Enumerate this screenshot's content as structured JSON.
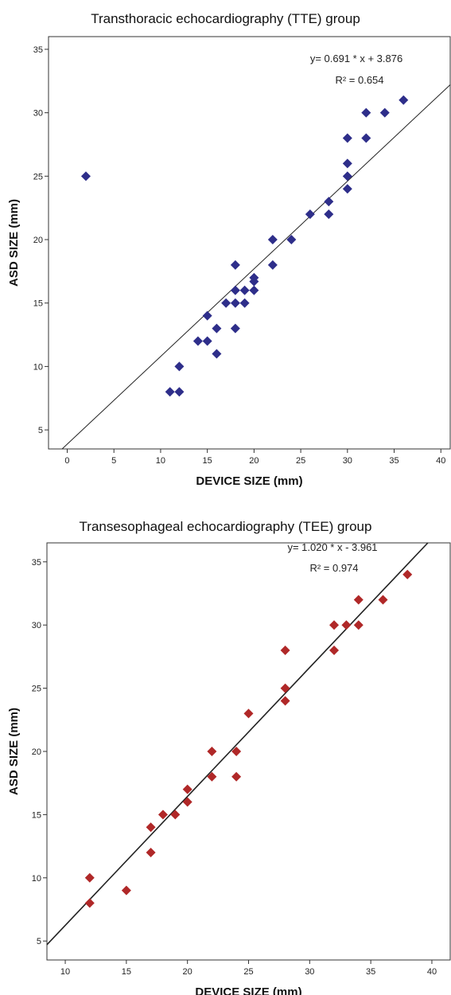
{
  "chart_data": [
    {
      "type": "scatter",
      "title": "Transthoracic echocardiography (TTE) group",
      "xlabel": "DEVICE SIZE (mm)",
      "ylabel": "ASD SIZE (mm)",
      "xlim": [
        -2,
        41
      ],
      "ylim": [
        3.5,
        36
      ],
      "xticks": [
        0,
        5,
        10,
        15,
        20,
        25,
        30,
        35,
        40
      ],
      "yticks": [
        5,
        10,
        15,
        20,
        25,
        30,
        35
      ],
      "grid": false,
      "marker_color": "#2e2e8a",
      "marker": "diamond",
      "points": [
        [
          2,
          25
        ],
        [
          11,
          8
        ],
        [
          12,
          8
        ],
        [
          12,
          10
        ],
        [
          14,
          12
        ],
        [
          15,
          12
        ],
        [
          15,
          14
        ],
        [
          16,
          11
        ],
        [
          16,
          13
        ],
        [
          17,
          15
        ],
        [
          18,
          13
        ],
        [
          18,
          15
        ],
        [
          18,
          16
        ],
        [
          18,
          18
        ],
        [
          19,
          15
        ],
        [
          19,
          16
        ],
        [
          20,
          16
        ],
        [
          20,
          16.7
        ],
        [
          20,
          17
        ],
        [
          22,
          18
        ],
        [
          22,
          20
        ],
        [
          24,
          20
        ],
        [
          26,
          22
        ],
        [
          28,
          22
        ],
        [
          28,
          23
        ],
        [
          30,
          24
        ],
        [
          30,
          25
        ],
        [
          30,
          26
        ],
        [
          30,
          28
        ],
        [
          32,
          28
        ],
        [
          32,
          30
        ],
        [
          34,
          30
        ],
        [
          36,
          31
        ]
      ],
      "fit": {
        "slope": 0.691,
        "intercept": 3.876
      },
      "equation": "y= 0.691 * x + 3.876",
      "r_squared": "R² = 0.654"
    },
    {
      "type": "scatter",
      "title": "Transesophageal echocardiography (TEE) group",
      "xlabel": "DEVICE SIZE (mm)",
      "ylabel": "ASD SIZE (mm)",
      "xlim": [
        8.5,
        41.5
      ],
      "ylim": [
        3.5,
        36.5
      ],
      "xticks": [
        10,
        15,
        20,
        25,
        30,
        35,
        40
      ],
      "yticks": [
        5,
        10,
        15,
        20,
        25,
        30,
        35
      ],
      "grid": false,
      "marker_color": "#b02828",
      "marker": "diamond",
      "points": [
        [
          12,
          8
        ],
        [
          12,
          10
        ],
        [
          15,
          9
        ],
        [
          17,
          12
        ],
        [
          17,
          14
        ],
        [
          18,
          15
        ],
        [
          19,
          15
        ],
        [
          20,
          16
        ],
        [
          20,
          17
        ],
        [
          22,
          18
        ],
        [
          22,
          20
        ],
        [
          24,
          18
        ],
        [
          24,
          20
        ],
        [
          25,
          23
        ],
        [
          28,
          24
        ],
        [
          28,
          25
        ],
        [
          28,
          28
        ],
        [
          32,
          28
        ],
        [
          32,
          30
        ],
        [
          33,
          30
        ],
        [
          34,
          30
        ],
        [
          34,
          32
        ],
        [
          36,
          32
        ],
        [
          38,
          34
        ]
      ],
      "fit": {
        "slope": 1.02,
        "intercept": -3.961
      },
      "equation": "y= 1.020 * x - 3.961",
      "r_squared": "R² = 0.974"
    }
  ]
}
